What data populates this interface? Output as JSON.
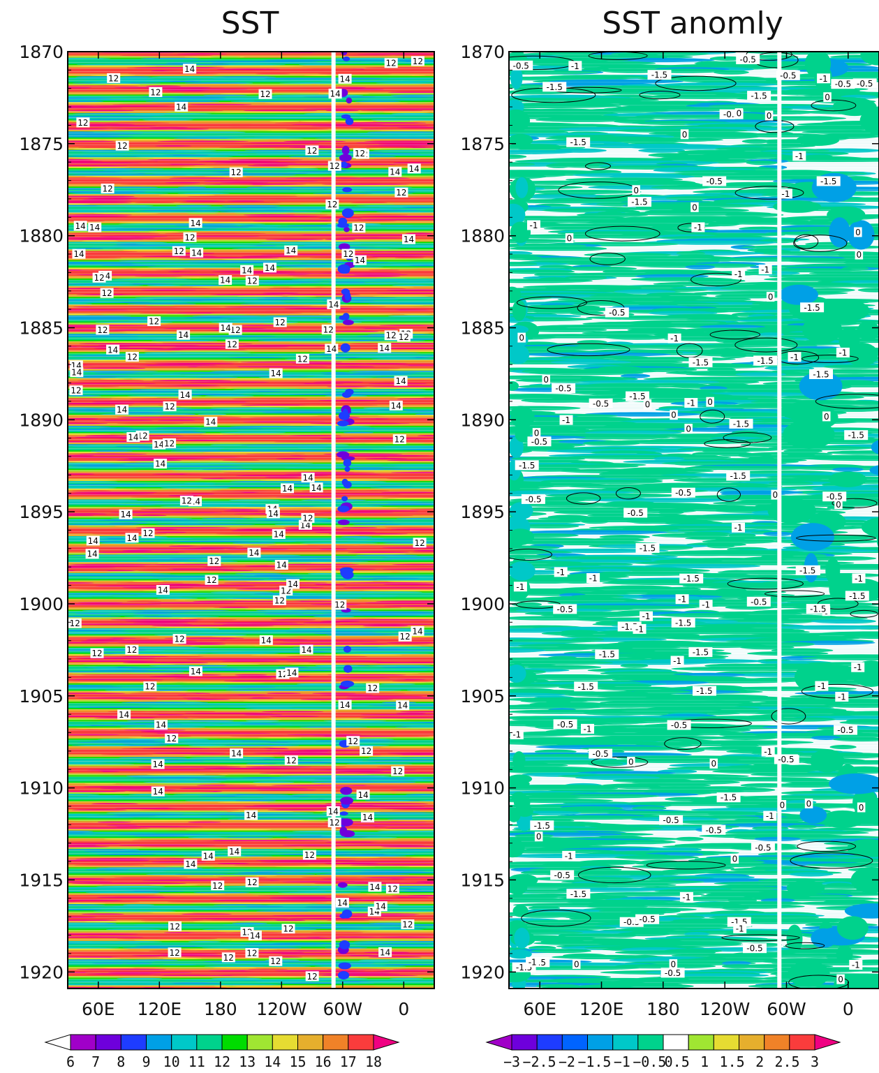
{
  "chart_data": [
    {
      "type": "heatmap",
      "title": "SST",
      "x_ticks": [
        "60E",
        "120E",
        "180",
        "120W",
        "60W",
        "0"
      ],
      "x_tick_lon": [
        60,
        120,
        180,
        240,
        300,
        360
      ],
      "xlim": [
        30,
        390
      ],
      "y_ticks": [
        "1870",
        "1875",
        "1880",
        "1885",
        "1890",
        "1895",
        "1900",
        "1905",
        "1910",
        "1915",
        "1920"
      ],
      "ylim": [
        1870,
        1920.9
      ],
      "colorbar_levels": [
        "6",
        "7",
        "8",
        "9",
        "10",
        "11",
        "12",
        "13",
        "14",
        "15",
        "16",
        "17",
        "18"
      ],
      "colorbar_colors": [
        "#ffffff",
        "#a000c8",
        "#6e00dc",
        "#1e3cff",
        "#00a0e6",
        "#00c8c8",
        "#00d28c",
        "#00dc00",
        "#a0e632",
        "#e6dc32",
        "#e6af2d",
        "#f08228",
        "#fa3c3c",
        "#f00082"
      ],
      "contour_labels": [
        "12",
        "14"
      ]
    },
    {
      "type": "heatmap",
      "title": "SST anomly",
      "x_ticks": [
        "60E",
        "120E",
        "180",
        "120W",
        "60W",
        "0"
      ],
      "x_tick_lon": [
        60,
        120,
        180,
        240,
        300,
        360
      ],
      "xlim": [
        30,
        390
      ],
      "y_ticks": [
        "1870",
        "1875",
        "1880",
        "1885",
        "1890",
        "1895",
        "1900",
        "1905",
        "1910",
        "1915",
        "1920"
      ],
      "ylim": [
        1870,
        1920.9
      ],
      "colorbar_levels": [
        "−3",
        "−2.5",
        "−2",
        "−1.5",
        "−1",
        "−0.5",
        "0.5",
        "1",
        "1.5",
        "2",
        "2.5",
        "3"
      ],
      "colorbar_colors": [
        "#a000c8",
        "#6e00dc",
        "#1e3cff",
        "#0064ff",
        "#00a0e6",
        "#00c8c8",
        "#00d28c",
        "#ffffff",
        "#a0e632",
        "#e6dc32",
        "#e6af2d",
        "#f08228",
        "#fa3c3c",
        "#f00082"
      ],
      "contour_labels": [
        "-0.5",
        "0",
        "-1",
        "-1.5"
      ]
    }
  ]
}
